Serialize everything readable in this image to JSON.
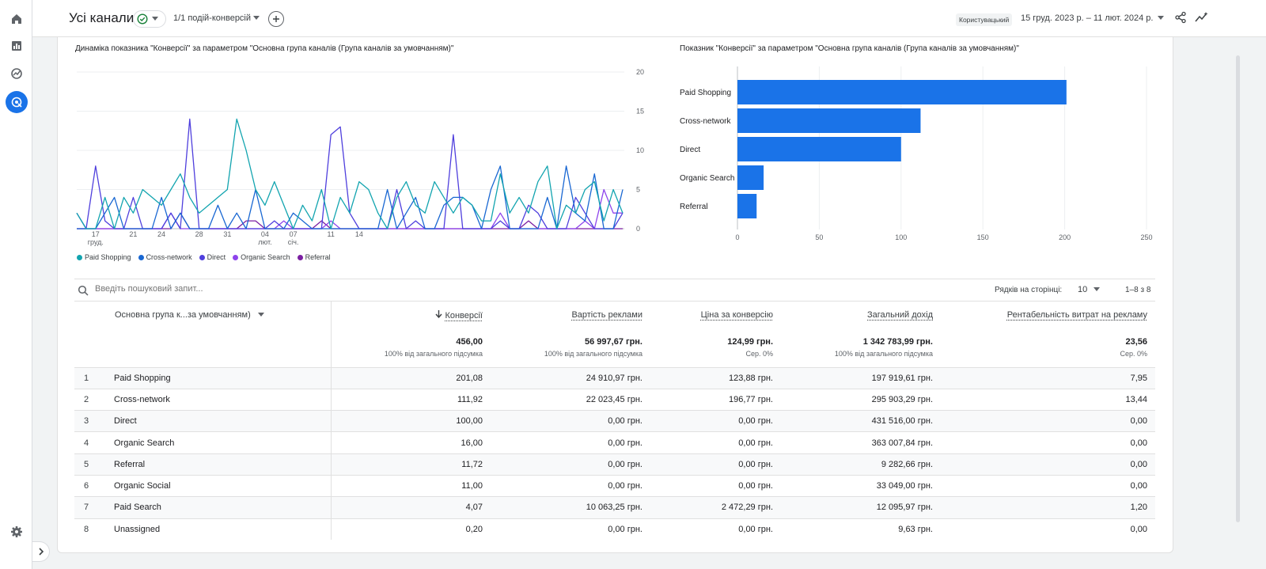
{
  "header": {
    "title": "Усі канали",
    "conversion_selector": "1/1 подій-конверсій",
    "user_chip": "Користувацький",
    "date_range": "15 груд. 2023 р. – 11 лют. 2024 р."
  },
  "line_chart": {
    "title": "Динаміка показника \"Конверсії\" за параметром \"Основна група каналів (Група каналів за умовчанням)\""
  },
  "bar_chart": {
    "title": "Показник \"Конверсії\" за параметром \"Основна група каналів (Група каналів за умовчанням)\""
  },
  "chart_data": [
    {
      "type": "line",
      "x_ticks": [
        {
          "label": "17",
          "sub": "груд."
        },
        {
          "label": "24",
          "sub": ""
        },
        {
          "label": "31",
          "sub": ""
        },
        {
          "label": "07",
          "sub": "січ."
        },
        {
          "label": "14",
          "sub": ""
        },
        {
          "label": "21",
          "sub": ""
        },
        {
          "label": "28",
          "sub": ""
        },
        {
          "label": "04",
          "sub": "лют."
        },
        {
          "label": "11",
          "sub": ""
        }
      ],
      "y_ticks": [
        "0",
        "5",
        "10",
        "15",
        "20"
      ],
      "ylim": [
        0,
        20
      ],
      "x": [
        "2023-12-15",
        "2023-12-16",
        "2023-12-17",
        "2023-12-18",
        "2023-12-19",
        "2023-12-20",
        "2023-12-21",
        "2023-12-22",
        "2023-12-23",
        "2023-12-24",
        "2023-12-25",
        "2023-12-26",
        "2023-12-27",
        "2023-12-28",
        "2023-12-29",
        "2023-12-30",
        "2023-12-31",
        "2024-01-01",
        "2024-01-02",
        "2024-01-03",
        "2024-01-04",
        "2024-01-05",
        "2024-01-06",
        "2024-01-07",
        "2024-01-08",
        "2024-01-09",
        "2024-01-10",
        "2024-01-11",
        "2024-01-12",
        "2024-01-13",
        "2024-01-14",
        "2024-01-15",
        "2024-01-16",
        "2024-01-17",
        "2024-01-18",
        "2024-01-19",
        "2024-01-20",
        "2024-01-21",
        "2024-01-22",
        "2024-01-23",
        "2024-01-24",
        "2024-01-25",
        "2024-01-26",
        "2024-01-27",
        "2024-01-28",
        "2024-01-29",
        "2024-01-30",
        "2024-01-31",
        "2024-02-01",
        "2024-02-02",
        "2024-02-03",
        "2024-02-04",
        "2024-02-05",
        "2024-02-06",
        "2024-02-07",
        "2024-02-08",
        "2024-02-09",
        "2024-02-10",
        "2024-02-11"
      ],
      "series": [
        {
          "name": "Paid Shopping",
          "color": "#12a4af",
          "values": [
            2,
            0,
            0,
            4,
            0,
            4,
            2,
            5,
            4,
            3,
            5,
            7,
            4,
            2,
            3,
            4,
            5,
            14,
            10,
            5,
            3,
            6,
            3,
            0,
            3,
            1,
            5,
            0,
            4,
            2,
            6,
            5,
            2,
            0,
            4,
            6,
            3,
            2,
            6,
            4,
            2,
            4,
            3,
            1,
            1,
            7,
            2,
            4,
            2,
            6,
            8,
            0,
            3,
            2,
            5,
            6,
            1,
            5,
            2
          ]
        },
        {
          "name": "Cross-network",
          "color": "#1967d2",
          "values": [
            0,
            0,
            0,
            2,
            4,
            0,
            0,
            0,
            0,
            4,
            0,
            2,
            0,
            0,
            0,
            3,
            0,
            2,
            0,
            5,
            0,
            0,
            0,
            2,
            1,
            0,
            0,
            0,
            0,
            0,
            0,
            0,
            0,
            5,
            0,
            2,
            4,
            0,
            0,
            3,
            4,
            4,
            3,
            0,
            5,
            8,
            0,
            0,
            0,
            0,
            4,
            0,
            8,
            2,
            1,
            7,
            0,
            0,
            5
          ]
        },
        {
          "name": "Direct",
          "color": "#4f3fdd",
          "values": [
            2,
            0,
            8,
            1,
            0,
            0,
            4,
            0,
            0,
            0,
            2,
            0,
            14,
            0,
            0,
            0,
            0,
            0,
            0,
            0,
            0,
            1,
            0,
            0,
            0,
            0,
            0,
            12,
            13,
            2,
            0,
            0,
            0,
            0,
            5,
            0,
            1,
            0,
            0,
            0,
            12,
            0,
            0,
            0,
            0,
            1,
            0,
            0,
            3,
            2,
            0,
            0,
            0,
            4,
            2,
            0,
            0,
            0,
            2
          ]
        },
        {
          "name": "Organic Search",
          "color": "#8e44ec",
          "values": [
            0,
            0,
            0,
            0,
            0,
            0,
            0,
            0,
            0,
            0,
            2,
            0,
            0,
            0,
            0,
            0,
            0,
            0,
            0,
            0,
            0,
            0,
            1,
            0,
            0,
            0,
            0,
            1,
            0,
            0,
            0,
            0,
            0,
            0,
            0,
            0,
            0,
            0,
            0,
            0,
            0,
            0,
            0,
            0,
            0,
            2,
            0,
            0,
            0,
            0,
            0,
            0,
            0,
            0,
            1,
            0,
            5,
            2,
            2
          ]
        },
        {
          "name": "Referral",
          "color": "#7b1fa2",
          "values": [
            0,
            0,
            0,
            0,
            0,
            0,
            0,
            0,
            0,
            0,
            0,
            2,
            0,
            0,
            0,
            0,
            0,
            0,
            1,
            1,
            0,
            0,
            0,
            0,
            0,
            0,
            1,
            0,
            0,
            0,
            0,
            0,
            0,
            0,
            0,
            0,
            0,
            0,
            0,
            0,
            0,
            0,
            0,
            0,
            0,
            0,
            0,
            0,
            1,
            0,
            0,
            0,
            0,
            0,
            0,
            0,
            0,
            0,
            0
          ]
        }
      ]
    },
    {
      "type": "bar",
      "orientation": "horizontal",
      "color": "#1a73e8",
      "categories": [
        "Paid Shopping",
        "Cross-network",
        "Direct",
        "Organic Search",
        "Referral"
      ],
      "values": [
        201.08,
        111.92,
        100.0,
        16.0,
        11.72
      ],
      "x_ticks": [
        "0",
        "50",
        "100",
        "150",
        "200",
        "250"
      ],
      "xlim": [
        0,
        250
      ]
    }
  ],
  "search": {
    "placeholder": "Введіть пошуковий запит..."
  },
  "pagination": {
    "rows_label": "Рядків на сторінці:",
    "rows_value": "10",
    "range": "1–8 з 8"
  },
  "table": {
    "dimension_header": "Основна група к...за умовчанням)",
    "columns": [
      "Конверсії",
      "Вартість реклами",
      "Ціна за конверсію",
      "Загальний дохід",
      "Рентабельність витрат на рекламу"
    ],
    "totals": [
      {
        "value": "456,00",
        "sub": "100% від загального підсумка"
      },
      {
        "value": "56 997,67 грн.",
        "sub": "100% від загального підсумка"
      },
      {
        "value": "124,99 грн.",
        "sub": "Сер. 0%"
      },
      {
        "value": "1 342 783,99 грн.",
        "sub": "100% від загального підсумка"
      },
      {
        "value": "23,56",
        "sub": "Сер. 0%"
      }
    ],
    "rows": [
      {
        "n": "1",
        "name": "Paid Shopping",
        "c1": "201,08",
        "c2": "24 910,97 грн.",
        "c3": "123,88 грн.",
        "c4": "197 919,61 грн.",
        "c5": "7,95"
      },
      {
        "n": "2",
        "name": "Cross-network",
        "c1": "111,92",
        "c2": "22 023,45 грн.",
        "c3": "196,77 грн.",
        "c4": "295 903,29 грн.",
        "c5": "13,44"
      },
      {
        "n": "3",
        "name": "Direct",
        "c1": "100,00",
        "c2": "0,00 грн.",
        "c3": "0,00 грн.",
        "c4": "431 516,00 грн.",
        "c5": "0,00"
      },
      {
        "n": "4",
        "name": "Organic Search",
        "c1": "16,00",
        "c2": "0,00 грн.",
        "c3": "0,00 грн.",
        "c4": "363 007,84 грн.",
        "c5": "0,00"
      },
      {
        "n": "5",
        "name": "Referral",
        "c1": "11,72",
        "c2": "0,00 грн.",
        "c3": "0,00 грн.",
        "c4": "9 282,66 грн.",
        "c5": "0,00"
      },
      {
        "n": "6",
        "name": "Organic Social",
        "c1": "11,00",
        "c2": "0,00 грн.",
        "c3": "0,00 грн.",
        "c4": "33 049,00 грн.",
        "c5": "0,00"
      },
      {
        "n": "7",
        "name": "Paid Search",
        "c1": "4,07",
        "c2": "10 063,25 грн.",
        "c3": "2 472,29 грн.",
        "c4": "12 095,97 грн.",
        "c5": "1,20"
      },
      {
        "n": "8",
        "name": "Unassigned",
        "c1": "0,20",
        "c2": "0,00 грн.",
        "c3": "0,00 грн.",
        "c4": "9,63 грн.",
        "c5": "0,00"
      }
    ]
  }
}
